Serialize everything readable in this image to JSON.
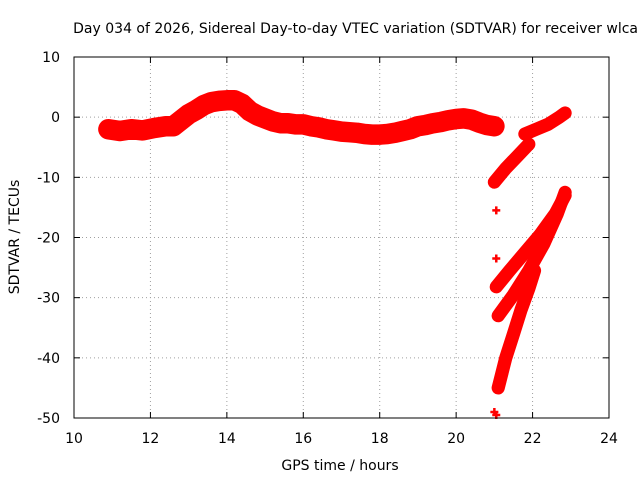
{
  "chart_data": {
    "type": "scatter",
    "title": "Day 034 of 2026, Sidereal Day-to-day VTEC variation (SDTVAR) for receiver wlca",
    "xlabel": "GPS time / hours",
    "ylabel": "SDTVAR / TECUs",
    "xlim": [
      10,
      24
    ],
    "ylim": [
      -50,
      10
    ],
    "x_ticks": [
      10,
      12,
      14,
      16,
      18,
      20,
      22,
      24
    ],
    "y_ticks": [
      -50,
      -40,
      -30,
      -20,
      -10,
      0,
      10
    ],
    "grid": true,
    "color": "#ff0000",
    "series": [
      {
        "name": "main band",
        "width": 3.4,
        "points": [
          [
            10.9,
            -2.0
          ],
          [
            11.2,
            -2.3
          ],
          [
            11.5,
            -2.0
          ],
          [
            11.8,
            -2.2
          ],
          [
            12.1,
            -1.8
          ],
          [
            12.4,
            -1.5
          ],
          [
            12.6,
            -1.5
          ],
          [
            12.8,
            -0.5
          ],
          [
            13.0,
            0.5
          ],
          [
            13.2,
            1.2
          ],
          [
            13.4,
            2.0
          ],
          [
            13.6,
            2.5
          ],
          [
            13.8,
            2.7
          ],
          [
            14.0,
            2.8
          ],
          [
            14.2,
            2.8
          ],
          [
            14.4,
            2.2
          ],
          [
            14.6,
            1.0
          ],
          [
            14.8,
            0.3
          ],
          [
            15.0,
            -0.2
          ],
          [
            15.2,
            -0.7
          ],
          [
            15.4,
            -1.0
          ],
          [
            15.6,
            -1.0
          ],
          [
            15.8,
            -1.2
          ],
          [
            16.0,
            -1.2
          ],
          [
            16.2,
            -1.5
          ],
          [
            16.4,
            -1.7
          ],
          [
            16.6,
            -2.0
          ],
          [
            16.8,
            -2.2
          ],
          [
            17.0,
            -2.4
          ],
          [
            17.2,
            -2.5
          ],
          [
            17.4,
            -2.6
          ],
          [
            17.6,
            -2.8
          ],
          [
            17.8,
            -2.9
          ],
          [
            18.0,
            -2.9
          ],
          [
            18.2,
            -2.8
          ],
          [
            18.4,
            -2.6
          ],
          [
            18.6,
            -2.3
          ],
          [
            18.8,
            -2.0
          ],
          [
            19.0,
            -1.5
          ],
          [
            19.2,
            -1.3
          ],
          [
            19.4,
            -1.0
          ],
          [
            19.6,
            -0.8
          ],
          [
            19.8,
            -0.5
          ],
          [
            20.0,
            -0.3
          ],
          [
            20.2,
            -0.2
          ],
          [
            20.4,
            -0.4
          ],
          [
            20.6,
            -0.9
          ],
          [
            20.8,
            -1.3
          ],
          [
            21.0,
            -1.5
          ]
        ]
      },
      {
        "name": "short arc A",
        "width": 2.2,
        "points": [
          [
            21.0,
            -10.8
          ],
          [
            21.3,
            -8.5
          ],
          [
            21.6,
            -6.5
          ],
          [
            21.9,
            -4.5
          ]
        ]
      },
      {
        "name": "short arc B",
        "width": 2.2,
        "points": [
          [
            21.8,
            -2.8
          ],
          [
            22.1,
            -2.0
          ],
          [
            22.4,
            -1.2
          ],
          [
            22.7,
            0.0
          ],
          [
            22.85,
            0.7
          ]
        ]
      },
      {
        "name": "long arc C",
        "width": 2.2,
        "points": [
          [
            21.05,
            -28.2
          ],
          [
            21.4,
            -25.5
          ],
          [
            21.8,
            -22.5
          ],
          [
            22.2,
            -19.5
          ],
          [
            22.6,
            -16.0
          ],
          [
            22.85,
            -13.0
          ]
        ]
      },
      {
        "name": "long arc D",
        "width": 2.2,
        "points": [
          [
            21.1,
            -33.0
          ],
          [
            21.5,
            -29.5
          ],
          [
            21.9,
            -25.5
          ],
          [
            22.3,
            -21.0
          ],
          [
            22.65,
            -16.0
          ],
          [
            22.85,
            -12.5
          ]
        ]
      },
      {
        "name": "steep arc E",
        "width": 2.2,
        "points": [
          [
            21.1,
            -45.0
          ],
          [
            21.3,
            -40.0
          ],
          [
            21.5,
            -36.0
          ],
          [
            21.7,
            -32.0
          ],
          [
            21.9,
            -28.5
          ],
          [
            22.05,
            -25.5
          ]
        ]
      }
    ],
    "isolated_points": [
      [
        21.0,
        -49.0
      ],
      [
        21.05,
        -49.5
      ],
      [
        21.05,
        -23.5
      ],
      [
        21.05,
        -15.5
      ]
    ]
  }
}
